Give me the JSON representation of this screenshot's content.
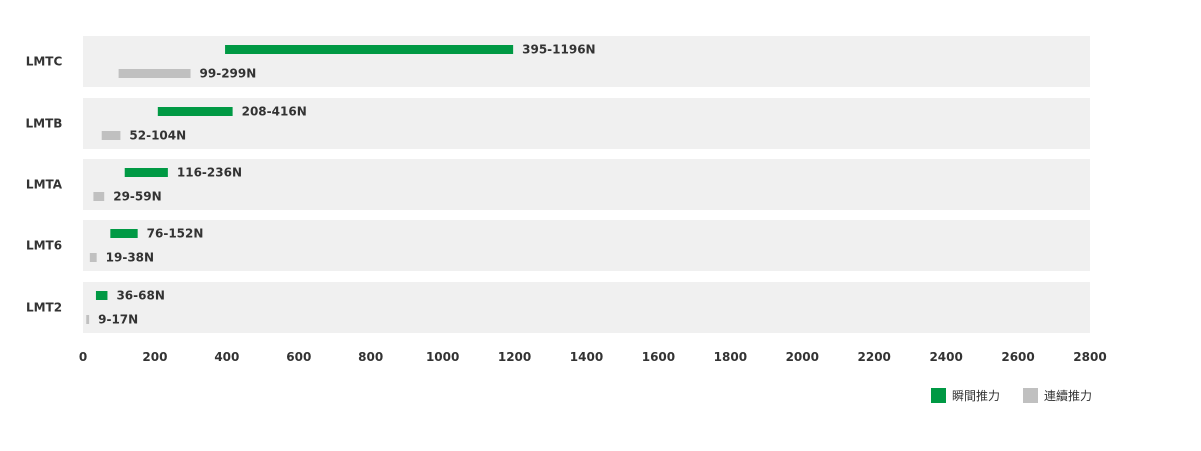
{
  "chart_data": {
    "type": "bar",
    "categories": [
      "LMTC",
      "LMTB",
      "LMTA",
      "LMT6",
      "LMT2"
    ],
    "series": [
      {
        "name": "瞬間推力",
        "color": "#009944",
        "ranges": [
          [
            395,
            1196
          ],
          [
            208,
            416
          ],
          [
            116,
            236
          ],
          [
            76,
            152
          ],
          [
            36,
            68
          ]
        ],
        "labels": [
          "395-1196N",
          "208-416N",
          "116-236N",
          "76-152N",
          "36-68N"
        ]
      },
      {
        "name": "連續推力",
        "color": "#c0c0c0",
        "ranges": [
          [
            99,
            299
          ],
          [
            52,
            104
          ],
          [
            29,
            59
          ],
          [
            19,
            38
          ],
          [
            9,
            17
          ]
        ],
        "labels": [
          "99-299N",
          "52-104N",
          "29-59N",
          "19-38N",
          "9-17N"
        ]
      }
    ],
    "xlim": [
      0,
      2800
    ],
    "xticks": [
      0,
      200,
      400,
      600,
      800,
      1000,
      1200,
      1400,
      1600,
      1800,
      2000,
      2200,
      2400,
      2600,
      2800
    ],
    "xlabel": "",
    "ylabel": "",
    "title": "",
    "legend": "bottom-right",
    "row_background": "#f0f0f0"
  }
}
